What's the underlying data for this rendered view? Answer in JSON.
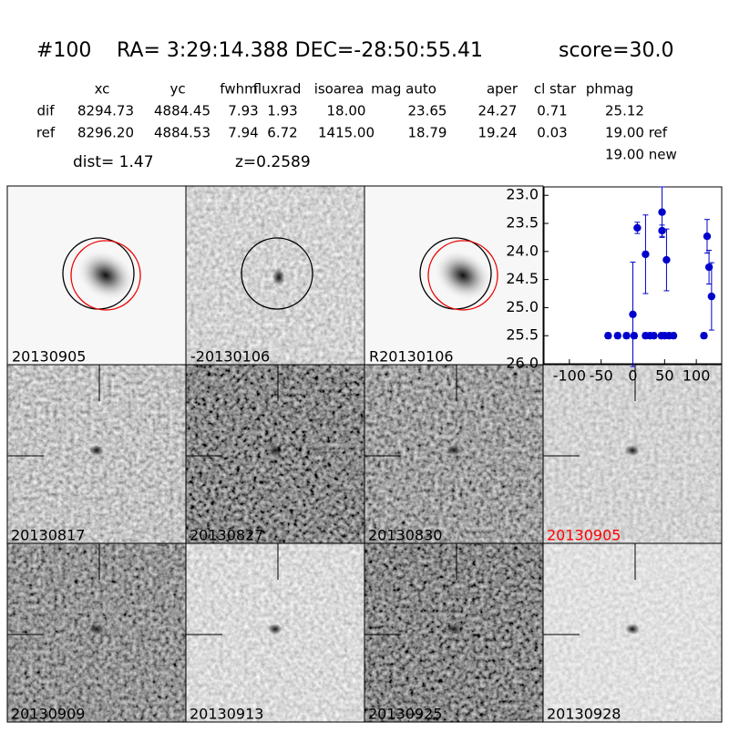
{
  "header": {
    "id": "#100",
    "coords": "RA= 3:29:14.388 DEC=-28:50:55.41",
    "score": "score=30.0"
  },
  "table": {
    "columns": [
      "xc",
      "yc",
      "fwhm",
      "fluxrad",
      "isoarea",
      "mag auto",
      "aper",
      "cl star",
      "phmag"
    ],
    "rows": [
      [
        "dif",
        "8294.73",
        "4884.45",
        "7.93",
        "1.93",
        "18.00",
        "23.65",
        "24.27",
        "0.71",
        "25.12"
      ],
      [
        "ref",
        "8296.20",
        "4884.53",
        "7.94",
        "6.72",
        "1415.00",
        "18.79",
        "19.24",
        "0.03",
        "19.00 ref"
      ]
    ],
    "extra": "19.00 new"
  },
  "dist": "dist=  1.47",
  "redshift": "z=0.2589",
  "top_panels": [
    {
      "label": "20130905"
    },
    {
      "label": "-20130106"
    },
    {
      "label": "R20130106"
    }
  ],
  "grid_panels": [
    {
      "label": "20130817"
    },
    {
      "label": "20130827"
    },
    {
      "label": "20130830"
    },
    {
      "label": "20130905",
      "color": "#ff0000"
    },
    {
      "label": "20130909"
    },
    {
      "label": "20130913"
    },
    {
      "label": "20130925"
    },
    {
      "label": "20130928"
    }
  ],
  "chart_data": {
    "type": "scatter",
    "color": "#0000cc",
    "x": [
      -39,
      -24,
      -10,
      0,
      2,
      7,
      20,
      20,
      27,
      33,
      45,
      46,
      46,
      50,
      53,
      57,
      64,
      112,
      117,
      120,
      124
    ],
    "values": [
      25.5,
      25.5,
      25.5,
      25.12,
      25.5,
      23.58,
      24.05,
      25.5,
      25.5,
      25.5,
      25.5,
      23.3,
      23.63,
      25.5,
      24.15,
      25.5,
      25.5,
      25.5,
      23.73,
      24.28,
      24.8
    ],
    "errors": [
      0.05,
      0.05,
      0.05,
      0.93,
      0.05,
      0.1,
      0.7,
      0.05,
      0.05,
      0.05,
      0.05,
      0.45,
      0.1,
      0.05,
      0.55,
      0.05,
      0.05,
      0.05,
      0.3,
      0.3,
      0.6
    ],
    "xlim": [
      -140,
      140
    ],
    "ylim": [
      26.0,
      22.85
    ],
    "xticks": [
      -100,
      -50,
      0,
      50,
      100
    ],
    "yticks": [
      {
        "value": 23,
        "label": "23.0"
      },
      {
        "value": 23.5,
        "label": "23.5"
      },
      {
        "value": 24,
        "label": "24.0"
      },
      {
        "value": 24.5,
        "label": "24.5"
      },
      {
        "value": 25,
        "label": "25.0"
      },
      {
        "value": 25.5,
        "label": "25.5"
      },
      {
        "value": 26,
        "label": "26.0"
      }
    ]
  }
}
